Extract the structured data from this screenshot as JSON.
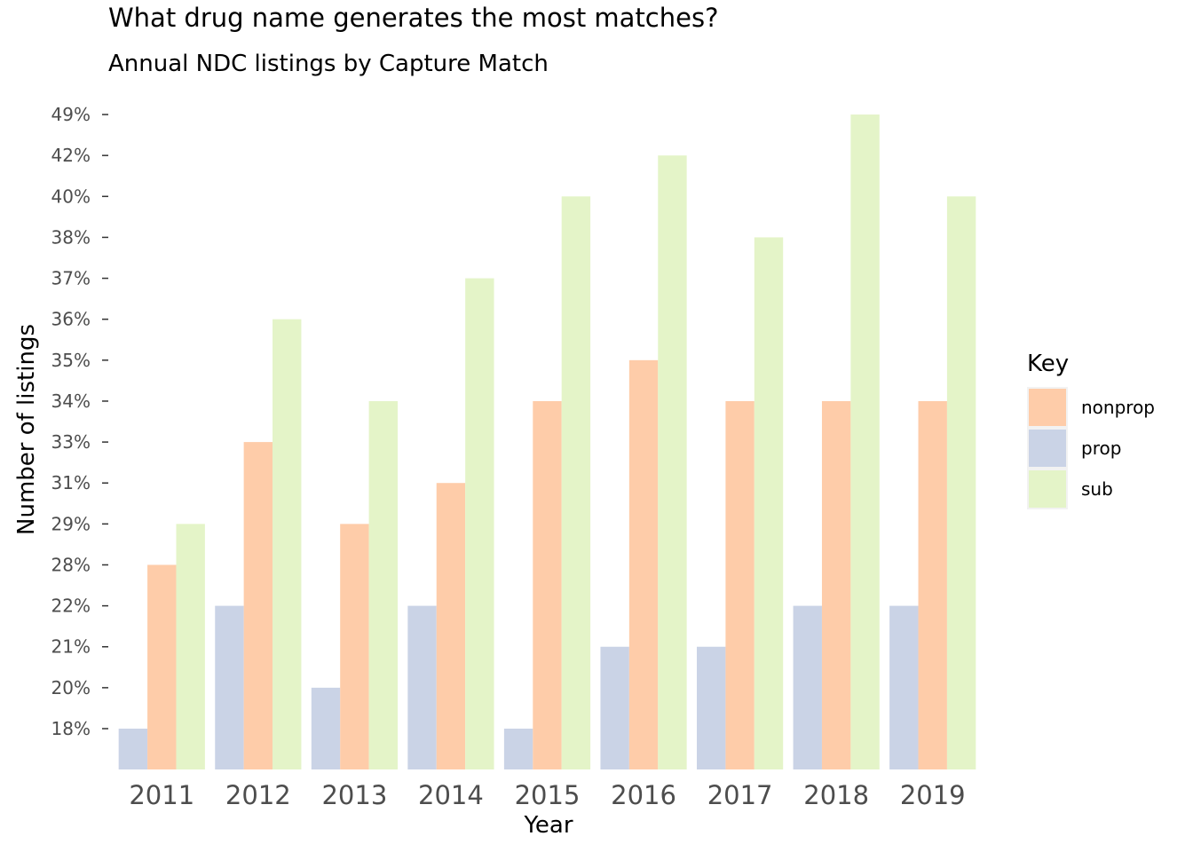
{
  "chart_data": {
    "type": "bar",
    "title": "What drug name generates the most matches?",
    "subtitle": "Annual NDC listings by Capture Match",
    "xlabel": "Year",
    "ylabel": "Number of listings",
    "categories": [
      "2011",
      "2012",
      "2013",
      "2014",
      "2015",
      "2016",
      "2017",
      "2018",
      "2019"
    ],
    "y_tick_labels": [
      "18%",
      "20%",
      "21%",
      "22%",
      "28%",
      "29%",
      "31%",
      "33%",
      "34%",
      "35%",
      "36%",
      "37%",
      "38%",
      "40%",
      "42%",
      "49%"
    ],
    "y_scale": "categorical (ordered tick labels, evenly spaced)",
    "series": [
      {
        "name": "prop",
        "color": "#cad3e6",
        "values": [
          "18%",
          "22%",
          "20%",
          "22%",
          "18%",
          "21%",
          "21%",
          "22%",
          "22%"
        ]
      },
      {
        "name": "nonprop",
        "color": "#fecca9",
        "values": [
          "28%",
          "33%",
          "29%",
          "31%",
          "34%",
          "35%",
          "34%",
          "34%",
          "34%"
        ]
      },
      {
        "name": "sub",
        "color": "#e4f4c8",
        "values": [
          "29%",
          "36%",
          "34%",
          "37%",
          "40%",
          "42%",
          "38%",
          "49%",
          "40%"
        ]
      }
    ],
    "legend": {
      "title": "Key",
      "position": "right",
      "entries": [
        {
          "label": "nonprop",
          "color": "#fecca9"
        },
        {
          "label": "prop",
          "color": "#cad3e6"
        },
        {
          "label": "sub",
          "color": "#e4f4c8"
        }
      ]
    },
    "grid": false
  }
}
